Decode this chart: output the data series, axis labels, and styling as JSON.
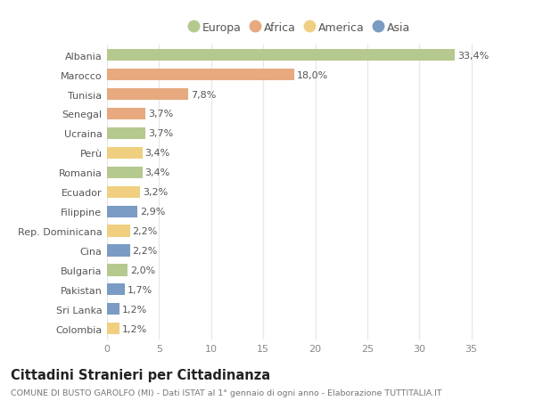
{
  "categories": [
    "Albania",
    "Marocco",
    "Tunisia",
    "Senegal",
    "Ucraina",
    "Perù",
    "Romania",
    "Ecuador",
    "Filippine",
    "Rep. Dominicana",
    "Cina",
    "Bulgaria",
    "Pakistan",
    "Sri Lanka",
    "Colombia"
  ],
  "values": [
    33.4,
    18.0,
    7.8,
    3.7,
    3.7,
    3.4,
    3.4,
    3.2,
    2.9,
    2.2,
    2.2,
    2.0,
    1.7,
    1.2,
    1.2
  ],
  "labels": [
    "33,4%",
    "18,0%",
    "7,8%",
    "3,7%",
    "3,7%",
    "3,4%",
    "3,4%",
    "3,2%",
    "2,9%",
    "2,2%",
    "2,2%",
    "2,0%",
    "1,7%",
    "1,2%",
    "1,2%"
  ],
  "colors": [
    "#b5c98e",
    "#e8a97e",
    "#e8a97e",
    "#e8a97e",
    "#b5c98e",
    "#f0d080",
    "#b5c98e",
    "#f0d080",
    "#7a9cc4",
    "#f0d080",
    "#7a9cc4",
    "#b5c98e",
    "#7a9cc4",
    "#7a9cc4",
    "#f0d080"
  ],
  "legend_labels": [
    "Europa",
    "Africa",
    "America",
    "Asia"
  ],
  "legend_colors": [
    "#b5c98e",
    "#e8a97e",
    "#f0d080",
    "#7a9cc4"
  ],
  "title": "Cittadini Stranieri per Cittadinanza",
  "subtitle": "COMUNE DI BUSTO GAROLFO (MI) - Dati ISTAT al 1° gennaio di ogni anno - Elaborazione TUTTITALIA.IT",
  "xlim": [
    0,
    37
  ],
  "xticks": [
    0,
    5,
    10,
    15,
    20,
    25,
    30,
    35
  ],
  "plot_bg": "#ffffff",
  "fig_bg": "#ffffff",
  "grid_color": "#e8e8e8",
  "bar_height": 0.6,
  "label_fontsize": 8.0,
  "tick_fontsize": 8.0,
  "legend_fontsize": 9.0,
  "title_fontsize": 10.5,
  "subtitle_fontsize": 6.8
}
